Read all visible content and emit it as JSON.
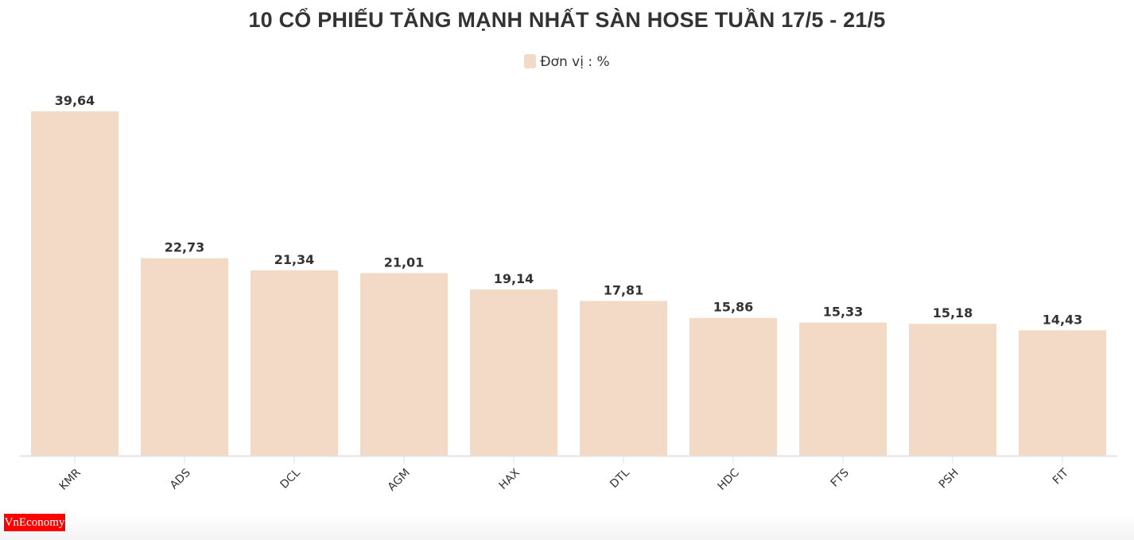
{
  "chart_data": {
    "type": "bar",
    "title": "10 CỔ PHIẾU TĂNG MẠNH NHẤT SÀN HOSE TUẦN 17/5 - 21/5",
    "legend": [
      "Đơn vị : %"
    ],
    "legend_placement": "top",
    "categories": [
      "KMR",
      "ADS",
      "DCL",
      "AGM",
      "HAX",
      "DTL",
      "HDC",
      "FTS",
      "PSH",
      "FIT"
    ],
    "values": [
      39.64,
      22.73,
      21.34,
      21.01,
      19.14,
      17.81,
      15.86,
      15.33,
      15.18,
      14.43
    ],
    "data_labels": [
      "39,64",
      "22,73",
      "21,34",
      "21,01",
      "19,14",
      "17,81",
      "15,86",
      "15,33",
      "15,18",
      "14,43"
    ],
    "ylim": [
      0,
      40
    ],
    "grid": false,
    "bar_color": "#f2dac6"
  },
  "logo": {
    "text": "VnEconomy"
  }
}
